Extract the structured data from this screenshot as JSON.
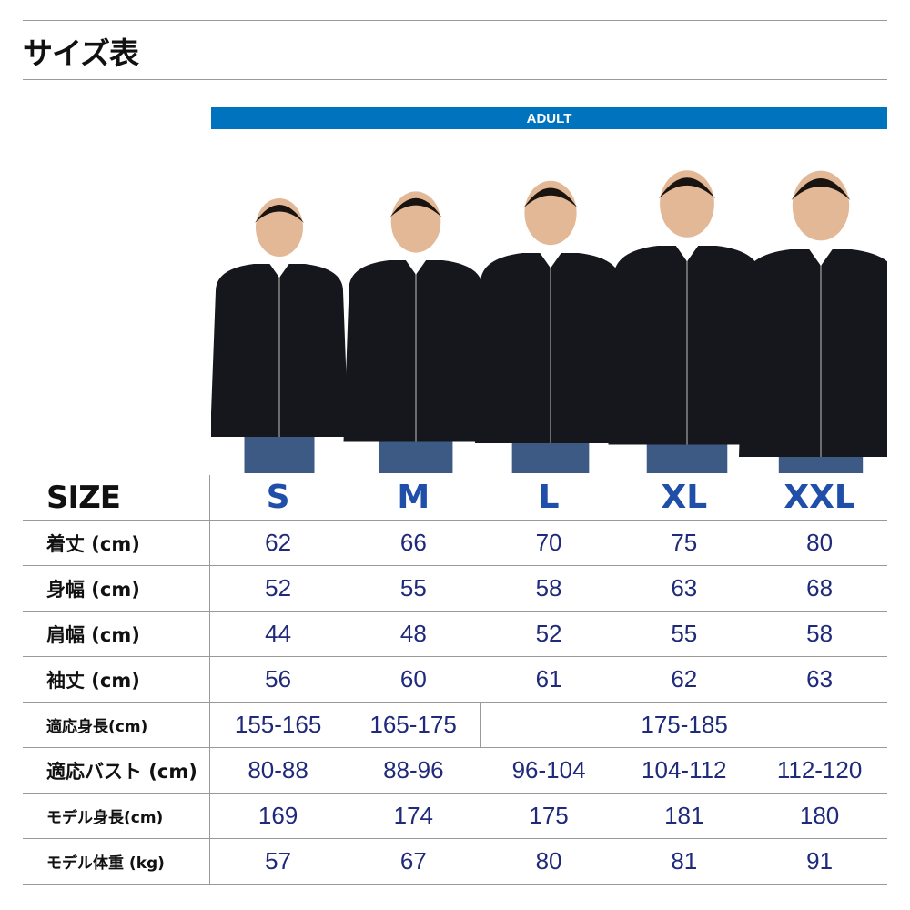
{
  "title": "サイズ表",
  "band_label": "ADULT",
  "colors": {
    "band": "#0073bf",
    "size_header": "#1f4fa8",
    "values": "#1f2a7a"
  },
  "header": {
    "label": "SIZE",
    "sizes": [
      "S",
      "M",
      "L",
      "XL",
      "XXL"
    ]
  },
  "rows": [
    {
      "label": "着丈 (cm)",
      "values": [
        "62",
        "66",
        "70",
        "75",
        "80"
      ]
    },
    {
      "label": "身幅 (cm)",
      "values": [
        "52",
        "55",
        "58",
        "63",
        "68"
      ]
    },
    {
      "label": "肩幅 (cm)",
      "values": [
        "44",
        "48",
        "52",
        "55",
        "58"
      ]
    },
    {
      "label": "袖丈 (cm)",
      "values": [
        "56",
        "60",
        "61",
        "62",
        "63"
      ]
    }
  ],
  "fit_height": {
    "label": "適応身長(cm)",
    "values": [
      "155-165",
      "165-175",
      "175-185"
    ]
  },
  "rows2": [
    {
      "label": "適応バスト (cm)",
      "values": [
        "80-88",
        "88-96",
        "96-104",
        "104-112",
        "112-120"
      ]
    },
    {
      "label": "モデル身長(cm)",
      "values": [
        "169",
        "174",
        "175",
        "181",
        "180"
      ]
    },
    {
      "label": "モデル体重 (kg)",
      "values": [
        "57",
        "67",
        "80",
        "81",
        "91"
      ]
    }
  ]
}
